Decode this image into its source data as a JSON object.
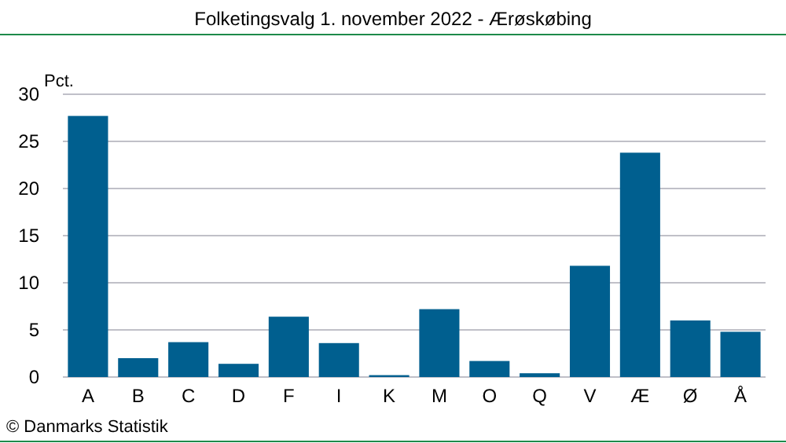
{
  "chart_data": {
    "type": "bar",
    "title": "Folketingsvalg 1. november 2022 - Ærøskøbing",
    "ylabel": "Pct.",
    "categories": [
      "A",
      "B",
      "C",
      "D",
      "F",
      "I",
      "K",
      "M",
      "O",
      "Q",
      "V",
      "Æ",
      "Ø",
      "Å"
    ],
    "values": [
      27.7,
      2.0,
      3.7,
      1.4,
      6.4,
      3.6,
      0.2,
      7.2,
      1.7,
      0.4,
      11.8,
      23.8,
      6.0,
      4.8
    ],
    "color": "#005f8f",
    "ylim": [
      0,
      30
    ],
    "yticks": [
      0,
      5,
      10,
      15,
      20,
      25,
      30
    ],
    "grid": "y",
    "annotations": [
      "© Danmarks Statistik"
    ]
  }
}
